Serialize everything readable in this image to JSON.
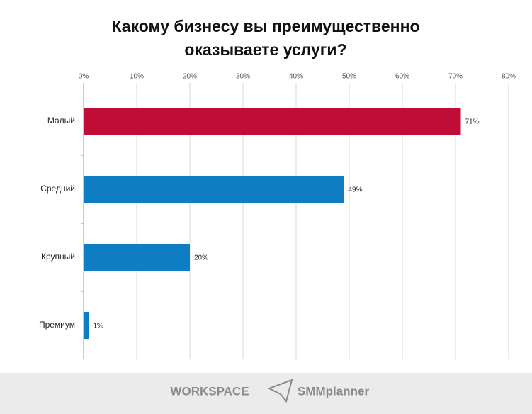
{
  "chart_data": {
    "type": "bar",
    "orientation": "horizontal",
    "title": [
      "Какому бизнесу вы преимущественно",
      "оказываете услуги?"
    ],
    "categories": [
      "Малый",
      "Средний",
      "Крупный",
      "Премиум"
    ],
    "values": [
      71,
      49,
      20,
      1
    ],
    "value_labels": [
      "71%",
      "49%",
      "20%",
      "1%"
    ],
    "colors": [
      "#c00d37",
      "#0f7dc2",
      "#0f7dc2",
      "#0f7dc2"
    ],
    "xlim": [
      0,
      80
    ],
    "xticks": [
      {
        "value": 0,
        "label": "0%"
      },
      {
        "value": 10,
        "label": "10%"
      },
      {
        "value": 20,
        "label": "20%"
      },
      {
        "value": 30,
        "label": "30%"
      },
      {
        "value": 40,
        "label": "40%"
      },
      {
        "value": 50,
        "label": "50%"
      },
      {
        "value": 60,
        "label": "60%"
      },
      {
        "value": 70,
        "label": "70%"
      },
      {
        "value": 80,
        "label": "80%"
      }
    ],
    "grid": true
  },
  "footer": {
    "logos": [
      "WORKSPACE",
      "SMMplanner"
    ]
  }
}
